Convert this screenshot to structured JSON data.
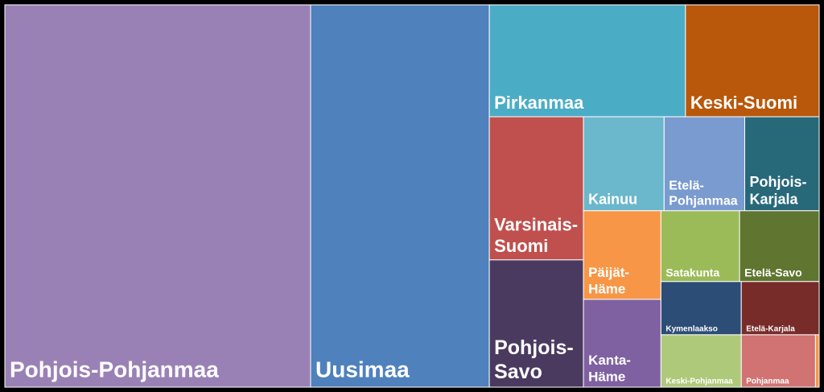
{
  "chart_data": {
    "type": "treemap",
    "categories": [
      "Pohjois-Pohjanmaa",
      "Uusimaa",
      "Pirkanmaa",
      "Keski-Suomi",
      "Varsinais-Suomi",
      "Pohjois-Savo",
      "Kainuu",
      "Etelä-Pohjanmaa",
      "Pohjois-Karjala",
      "Päijät-Häme",
      "Kanta-Häme",
      "Satakunta",
      "Etelä-Savo",
      "Kymenlaakso",
      "Etelä-Karjala",
      "Keski-Pohjanmaa",
      "Pohjanmaa",
      null
    ],
    "values": [
      1805,
      1055,
      339,
      231,
      208,
      185,
      117,
      117,
      108,
      106,
      105,
      86,
      87,
      66,
      64,
      65,
      60,
      3
    ],
    "colors": [
      "#9a81b5",
      "#4f81bd",
      "#4bacc6",
      "#b9570a",
      "#c0504d",
      "#4b3a60",
      "#6bb7cc",
      "#7a9bcf",
      "#276879",
      "#f79646",
      "#7f60a0",
      "#9bbb59",
      "#5f7530",
      "#2c4d75",
      "#772c2a",
      "#afc97a",
      "#d07372",
      "#f79646"
    ]
  }
}
